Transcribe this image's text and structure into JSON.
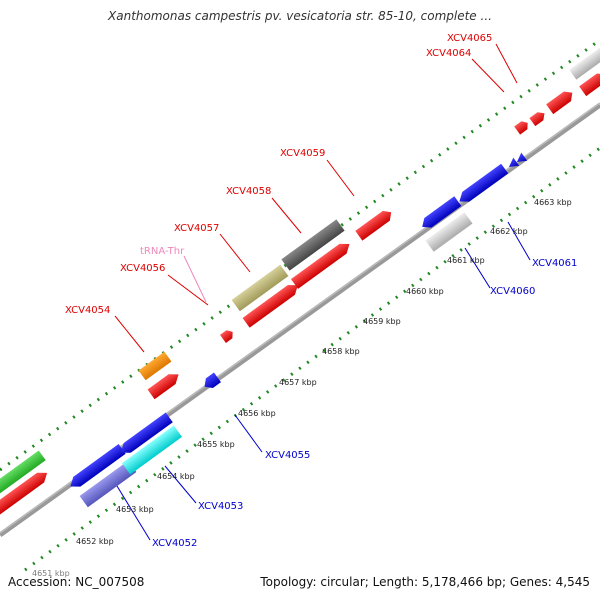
{
  "title": "Xanthomonas campestris pv. vesicatoria str. 85-10, complete ...",
  "footer": {
    "accession": "Accession: NC_007508",
    "summary": "Topology: circular; Length: 5,178,466 bp; Genes: 4,545"
  },
  "colors": {
    "forward_label": "#dd0000",
    "reverse_label": "#0000cc",
    "trna_label": "#ee88bb",
    "backbone": "#999999",
    "tick": "#228822"
  },
  "kbp_ticks": [
    "4651 kbp",
    "4652 kbp",
    "4653 kbp",
    "4654 kbp",
    "4655 kbp",
    "4656 kbp",
    "4657 kbp",
    "4658 kbp",
    "4659 kbp",
    "4660 kbp",
    "4661 kbp",
    "4662 kbp",
    "4663 kbp"
  ],
  "gene_labels": [
    {
      "text": "XCV4054",
      "strand": "forward"
    },
    {
      "text": "XCV4056",
      "strand": "forward"
    },
    {
      "text": "tRNA-Thr",
      "strand": "trna"
    },
    {
      "text": "XCV4057",
      "strand": "forward"
    },
    {
      "text": "XCV4058",
      "strand": "forward"
    },
    {
      "text": "XCV4059",
      "strand": "forward"
    },
    {
      "text": "XCV4064",
      "strand": "forward"
    },
    {
      "text": "XCV4065",
      "strand": "forward"
    },
    {
      "text": "XCV4052",
      "strand": "reverse"
    },
    {
      "text": "XCV4053",
      "strand": "reverse"
    },
    {
      "text": "XCV4055",
      "strand": "reverse"
    },
    {
      "text": "XCV4060",
      "strand": "reverse"
    },
    {
      "text": "XCV4061",
      "strand": "reverse"
    }
  ]
}
